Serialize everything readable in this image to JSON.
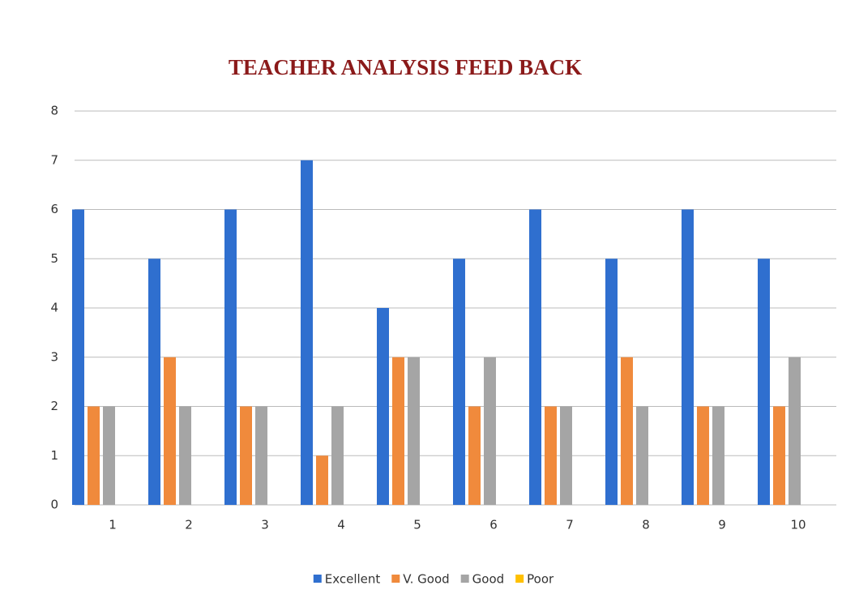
{
  "chart_data": {
    "type": "bar",
    "title": "TEACHER ANALYSIS FEED BACK",
    "categories": [
      "1",
      "2",
      "3",
      "4",
      "5",
      "6",
      "7",
      "8",
      "9",
      "10"
    ],
    "series": [
      {
        "name": "Excellent",
        "color": "#2f6fcf",
        "values": [
          6,
          5,
          6,
          7,
          4,
          5,
          6,
          5,
          6,
          5
        ]
      },
      {
        "name": "V. Good",
        "color": "#f08a3c",
        "values": [
          2,
          3,
          2,
          1,
          3,
          2,
          2,
          3,
          2,
          2
        ]
      },
      {
        "name": "Good",
        "color": "#a5a5a5",
        "values": [
          2,
          2,
          2,
          2,
          3,
          3,
          2,
          2,
          2,
          3
        ]
      },
      {
        "name": "Poor",
        "color": "#ffc000",
        "values": [
          0,
          0,
          0,
          0,
          0,
          0,
          0,
          0,
          0,
          0
        ]
      }
    ],
    "ylim": [
      0,
      8
    ],
    "yticks": [
      0,
      1,
      2,
      3,
      4,
      5,
      6,
      7,
      8
    ],
    "grid": true,
    "legend": "bottom"
  }
}
